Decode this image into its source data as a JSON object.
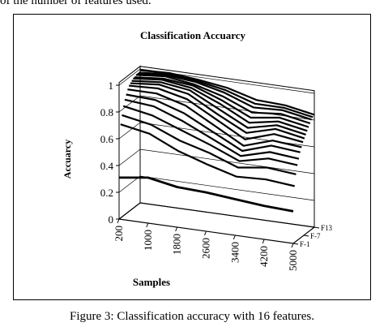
{
  "page": {
    "top_text": "of the number of features used.",
    "caption": "Figure 3: Classification accuracy with 16 features."
  },
  "chart_data": {
    "type": "line",
    "title": "Classification Accuarcy",
    "xlabel": "Samples",
    "ylabel": "Accuarcy",
    "x_ticks": [
      "200",
      "1000",
      "1800",
      "2600",
      "3400",
      "4200",
      "5000"
    ],
    "y_ticks": [
      "0",
      "0.2",
      "0.4",
      "0.6",
      "0.8",
      "1"
    ],
    "z_ticks": [
      "F-1",
      "F-7",
      "F13"
    ],
    "ylim": [
      0,
      1
    ],
    "x": [
      200,
      1000,
      1800,
      2600,
      3400,
      4200,
      5000
    ],
    "series_color": "#000000",
    "series": [
      {
        "values": [
          0.31,
          0.34,
          0.3,
          0.29,
          0.27,
          0.25,
          0.24
        ]
      },
      {
        "values": [
          0.7,
          0.66,
          0.56,
          0.49,
          0.43,
          0.44,
          0.42
        ]
      },
      {
        "values": [
          0.76,
          0.72,
          0.63,
          0.57,
          0.49,
          0.52,
          0.5
        ]
      },
      {
        "values": [
          0.82,
          0.78,
          0.7,
          0.62,
          0.53,
          0.58,
          0.56
        ]
      },
      {
        "values": [
          0.86,
          0.84,
          0.76,
          0.66,
          0.56,
          0.62,
          0.6
        ]
      },
      {
        "values": [
          0.89,
          0.88,
          0.81,
          0.7,
          0.59,
          0.66,
          0.64
        ]
      },
      {
        "values": [
          0.92,
          0.92,
          0.86,
          0.74,
          0.62,
          0.69,
          0.67
        ]
      },
      {
        "values": [
          0.94,
          0.95,
          0.9,
          0.78,
          0.66,
          0.73,
          0.7
        ]
      },
      {
        "values": [
          0.95,
          0.97,
          0.93,
          0.81,
          0.7,
          0.76,
          0.72
        ]
      },
      {
        "values": [
          0.96,
          0.98,
          0.95,
          0.84,
          0.73,
          0.78,
          0.74
        ]
      },
      {
        "values": [
          0.97,
          0.99,
          0.96,
          0.87,
          0.76,
          0.8,
          0.76
        ]
      },
      {
        "values": [
          0.97,
          0.99,
          0.97,
          0.89,
          0.79,
          0.82,
          0.78
        ]
      },
      {
        "values": [
          0.98,
          1.0,
          0.97,
          0.91,
          0.82,
          0.84,
          0.8
        ]
      },
      {
        "values": [
          0.98,
          1.0,
          0.98,
          0.93,
          0.85,
          0.86,
          0.82
        ]
      },
      {
        "values": [
          0.98,
          1.0,
          0.98,
          0.94,
          0.87,
          0.87,
          0.83
        ]
      },
      {
        "values": [
          0.99,
          1.0,
          0.98,
          0.95,
          0.89,
          0.88,
          0.84
        ]
      }
    ]
  }
}
